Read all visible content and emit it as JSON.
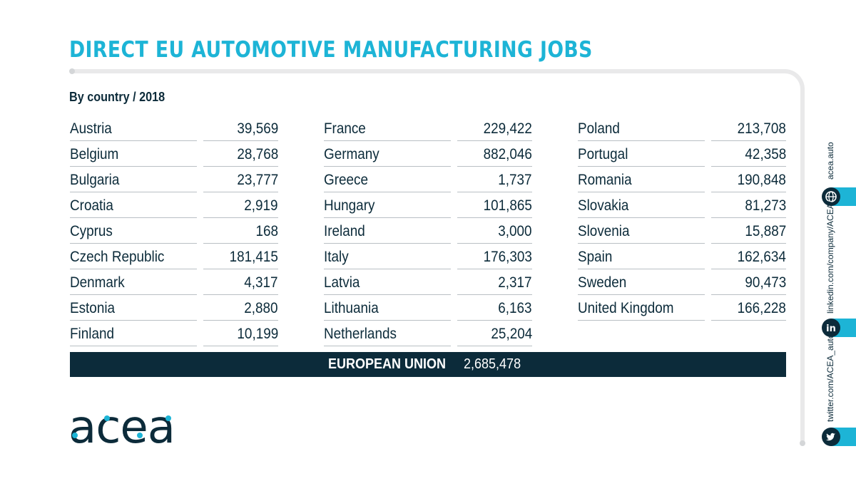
{
  "title": "DIRECT EU AUTOMOTIVE MANUFACTURING JOBS",
  "subtitle": "By country / 2018",
  "columns": [
    [
      {
        "country": "Austria",
        "value": "39,569"
      },
      {
        "country": "Belgium",
        "value": "28,768"
      },
      {
        "country": "Bulgaria",
        "value": "23,777"
      },
      {
        "country": "Croatia",
        "value": "2,919"
      },
      {
        "country": "Cyprus",
        "value": "168"
      },
      {
        "country": "Czech Republic",
        "value": "181,415"
      },
      {
        "country": "Denmark",
        "value": "4,317"
      },
      {
        "country": "Estonia",
        "value": "2,880"
      },
      {
        "country": "Finland",
        "value": "10,199"
      }
    ],
    [
      {
        "country": "France",
        "value": "229,422"
      },
      {
        "country": "Germany",
        "value": "882,046"
      },
      {
        "country": "Greece",
        "value": "1,737"
      },
      {
        "country": "Hungary",
        "value": "101,865"
      },
      {
        "country": "Ireland",
        "value": "3,000"
      },
      {
        "country": "Italy",
        "value": "176,303"
      },
      {
        "country": "Latvia",
        "value": "2,317"
      },
      {
        "country": "Lithuania",
        "value": "6,163"
      },
      {
        "country": "Netherlands",
        "value": "25,204"
      }
    ],
    [
      {
        "country": "Poland",
        "value": "213,708"
      },
      {
        "country": "Portugal",
        "value": "42,358"
      },
      {
        "country": "Romania",
        "value": "190,848"
      },
      {
        "country": "Slovakia",
        "value": "81,273"
      },
      {
        "country": "Slovenia",
        "value": "15,887"
      },
      {
        "country": "Spain",
        "value": "162,634"
      },
      {
        "country": "Sweden",
        "value": "90,473"
      },
      {
        "country": "United Kingdom",
        "value": "166,228"
      }
    ]
  ],
  "total": {
    "label": "EUROPEAN UNION",
    "value": "2,685,478"
  },
  "social": {
    "website": "acea.auto",
    "linkedin": "linkedin.com/company/ACEA/",
    "twitter": "twitter.com/ACEA_auto"
  },
  "logo_text": "acea",
  "colors": {
    "accent": "#1db4d6",
    "navy": "#0c2b3a",
    "rule": "#b9bfc4",
    "frame": "#e9e9ea"
  },
  "icons": [
    "globe-icon",
    "linkedin-icon",
    "twitter-icon"
  ]
}
